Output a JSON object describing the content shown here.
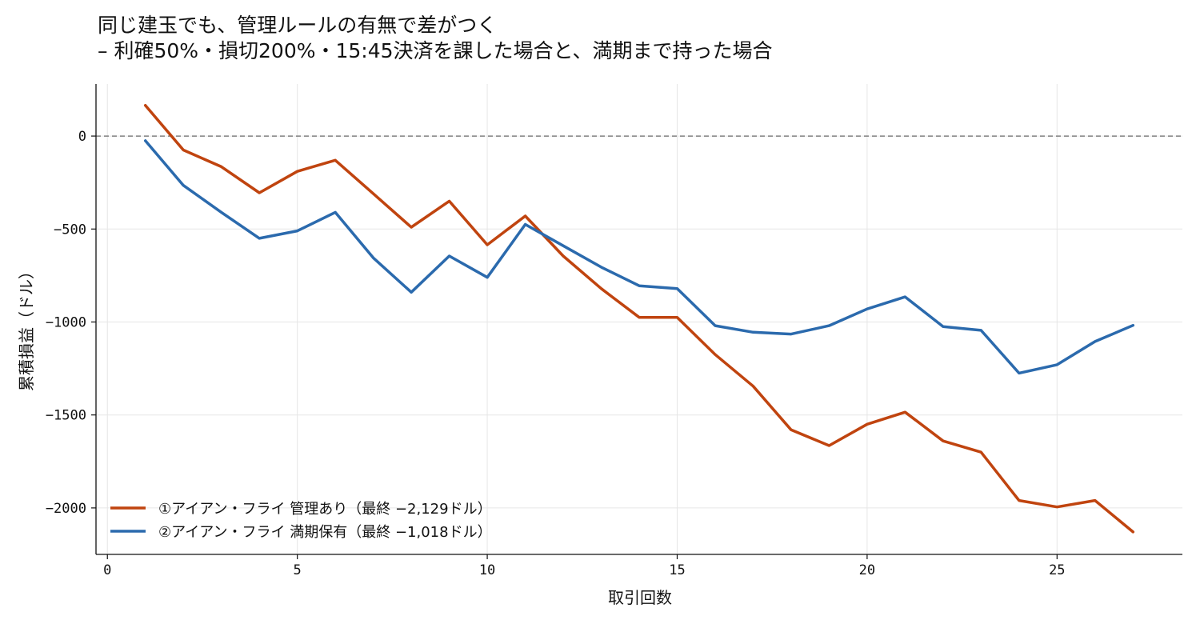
{
  "chart_data": {
    "type": "line",
    "title": "同じ建玉でも、管理ルールの有無で差がつく",
    "subtitle": "– 利確50%・損切200%・15:45決済を課した場合と、満期まで持った場合",
    "xlabel": "取引回数",
    "ylabel": "累積損益（ドル）",
    "xlim": [
      -0.3,
      28.3
    ],
    "ylim": [
      -2250,
      280
    ],
    "xticks": [
      0,
      5,
      10,
      15,
      20,
      25
    ],
    "yticks": [
      0,
      -500,
      -1000,
      -1500,
      -2000
    ],
    "grid": true,
    "reference_line": 0,
    "legend_position": "lower-left",
    "x": [
      1,
      2,
      3,
      4,
      5,
      6,
      7,
      8,
      9,
      10,
      11,
      12,
      13,
      14,
      15,
      16,
      17,
      18,
      19,
      20,
      21,
      22,
      23,
      24,
      25,
      26,
      27
    ],
    "series": [
      {
        "name": "①アイアン・フライ 管理あり（最終 −2,129ドル）",
        "color": "#c0440f",
        "values": [
          165,
          -75,
          -165,
          -305,
          -190,
          -130,
          -310,
          -490,
          -350,
          -585,
          -430,
          -645,
          -820,
          -975,
          -975,
          -1175,
          -1345,
          -1580,
          -1665,
          -1550,
          -1485,
          -1640,
          -1700,
          -1960,
          -1995,
          -1960,
          -2129
        ]
      },
      {
        "name": "②アイアン・フライ 満期保有（最終 −1,018ドル）",
        "color": "#2b6aad",
        "values": [
          -25,
          -265,
          -410,
          -550,
          -510,
          -410,
          -655,
          -840,
          -645,
          -760,
          -475,
          -590,
          -705,
          -805,
          -820,
          -1020,
          -1055,
          -1065,
          -1020,
          -930,
          -865,
          -1025,
          -1045,
          -1275,
          -1230,
          -1105,
          -1018
        ]
      }
    ]
  }
}
